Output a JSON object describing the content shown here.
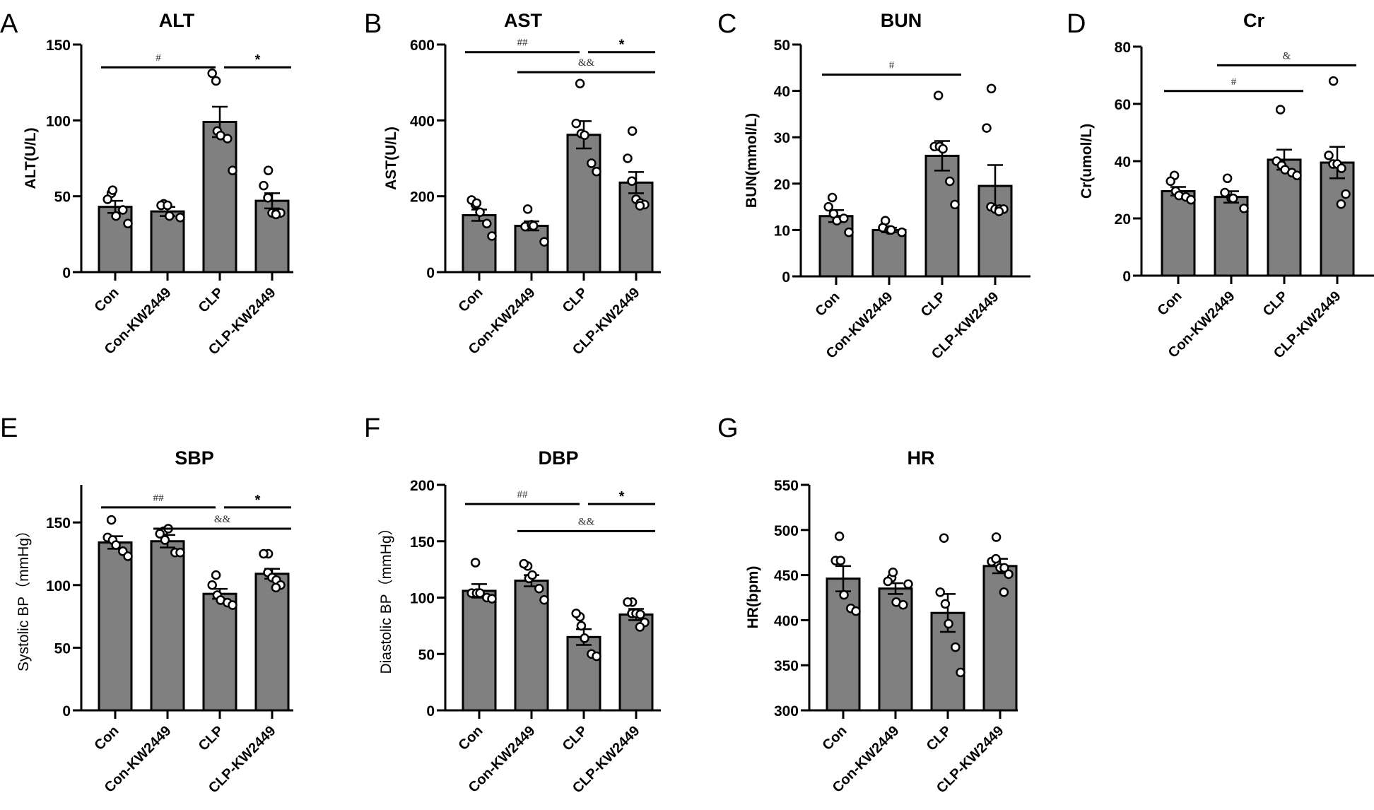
{
  "figure": {
    "bar_color": "#808080",
    "point_fill": "#ffffff",
    "line_color": "#000000"
  },
  "chart_data": [
    {
      "panel": "A",
      "type": "bar",
      "title": "ALT",
      "ylabel": "ALT(U/L)",
      "ylabel_weight": "bold",
      "categories": [
        "Con",
        "Con-KW2449",
        "CLP",
        "CLP-KW2449"
      ],
      "ylim": [
        0,
        150
      ],
      "yticks": [
        0,
        50,
        100,
        150
      ],
      "means": [
        43,
        40,
        99,
        47
      ],
      "sem": [
        4,
        3,
        10,
        5
      ],
      "points": [
        [
          52,
          48,
          54,
          37,
          41,
          32
        ],
        [
          45,
          44,
          44,
          37,
          36
        ],
        [
          126,
          131,
          93,
          90,
          88,
          67
        ],
        [
          67,
          57,
          49,
          39,
          39,
          39,
          38
        ]
      ],
      "annotations": [
        {
          "label": "#",
          "from": 0,
          "to": 2,
          "y": 135,
          "style": "small"
        },
        {
          "label": "*",
          "from": 2,
          "to": 3,
          "y": 135,
          "style": "star"
        }
      ]
    },
    {
      "panel": "B",
      "type": "bar",
      "title": "AST",
      "ylabel": "AST(U/L)",
      "ylabel_weight": "bold",
      "categories": [
        "Con",
        "Con-KW2449",
        "CLP",
        "CLP-KW2449"
      ],
      "ylim": [
        0,
        600
      ],
      "yticks": [
        0,
        200,
        400,
        600
      ],
      "means": [
        150,
        122,
        362,
        236
      ],
      "sem": [
        15,
        12,
        36,
        28
      ],
      "points": [
        [
          178,
          190,
          182,
          158,
          128,
          95
        ],
        [
          166,
          120,
          125,
          122,
          80
        ],
        [
          497,
          392,
          365,
          361,
          287,
          265
        ],
        [
          372,
          300,
          240,
          192,
          182,
          178,
          175
        ]
      ],
      "annotations": [
        {
          "label": "##",
          "from": 0,
          "to": 2,
          "y": 580,
          "style": "small"
        },
        {
          "label": "*",
          "from": 2,
          "to": 3,
          "y": 580,
          "style": "star"
        },
        {
          "label": "&&",
          "from": 1,
          "to": 3,
          "y": 527,
          "style": "amp"
        }
      ]
    },
    {
      "panel": "C",
      "type": "bar",
      "title": "BUN",
      "ylabel": "BUN(mmol/L)",
      "ylabel_weight": "bold",
      "categories": [
        "Con",
        "Con-KW2449",
        "CLP",
        "CLP-KW2449"
      ],
      "ylim": [
        0,
        50
      ],
      "yticks": [
        0,
        10,
        20,
        30,
        40,
        50
      ],
      "means": [
        13,
        10,
        26,
        19.5
      ],
      "sem": [
        1.3,
        0.5,
        3.2,
        4.5
      ],
      "points": [
        [
          17,
          15,
          13.5,
          12,
          12.5,
          9.5
        ],
        [
          12,
          10.5,
          10,
          10,
          9.5
        ],
        [
          39,
          28,
          28,
          27.5,
          20.5,
          15.5
        ],
        [
          40.5,
          32,
          15,
          14.5,
          14.5,
          14.5,
          14
        ]
      ],
      "annotations": [
        {
          "label": "#",
          "from": 0,
          "to": 2,
          "y": 43.5,
          "style": "small"
        }
      ]
    },
    {
      "panel": "D",
      "type": "bar",
      "title": "Cr",
      "ylabel": "Cr(umol/L)",
      "ylabel_weight": "bold",
      "categories": [
        "Con",
        "Con-KW2449",
        "CLP",
        "CLP-KW2449"
      ],
      "ylim": [
        0,
        80
      ],
      "yticks": [
        0,
        20,
        40,
        60,
        80
      ],
      "means": [
        29.5,
        27.5,
        40.5,
        39.5
      ],
      "sem": [
        1.5,
        2,
        3.5,
        5.5
      ],
      "points": [
        [
          35,
          33,
          29.5,
          28,
          27.5,
          26.5
        ],
        [
          34,
          29,
          27,
          27,
          23.5
        ],
        [
          58,
          40,
          38.5,
          37,
          36,
          35
        ],
        [
          68,
          42,
          39,
          39,
          37.5,
          28.5,
          25
        ]
      ],
      "annotations": [
        {
          "label": "#",
          "from": 0,
          "to": 2,
          "y": 64.5,
          "style": "small"
        },
        {
          "label": "&",
          "from": 1,
          "to": 3,
          "y": 73.5,
          "style": "amp"
        }
      ]
    },
    {
      "panel": "E",
      "type": "bar",
      "title": "SBP",
      "ylabel": "Systolic BP（mmHg）",
      "ylabel_weight": "normal",
      "categories": [
        "Con",
        "Con-KW2449",
        "CLP",
        "CLP-KW2449"
      ],
      "ylim": [
        0,
        180
      ],
      "yticks": [
        0,
        50,
        100,
        150
      ],
      "means": [
        134,
        135,
        93,
        109
      ],
      "sem": [
        5,
        5,
        4,
        4
      ],
      "points": [
        [
          152,
          138,
          136,
          132,
          127,
          123
        ],
        [
          143,
          141,
          136,
          145,
          126,
          126
        ],
        [
          108,
          100,
          92,
          88,
          86,
          84
        ],
        [
          125,
          125,
          110,
          106,
          104,
          100,
          98
        ]
      ],
      "annotations": [
        {
          "label": "##",
          "from": 0,
          "to": 2,
          "y": 162,
          "style": "small"
        },
        {
          "label": "*",
          "from": 2,
          "to": 3,
          "y": 162,
          "style": "star"
        },
        {
          "label": "&&",
          "from": 1,
          "to": 3,
          "y": 145,
          "style": "amp"
        }
      ]
    },
    {
      "panel": "F",
      "type": "bar",
      "title": "DBP",
      "ylabel": "Diastolic BP（mmHg）",
      "ylabel_weight": "normal",
      "categories": [
        "Con",
        "Con-KW2449",
        "CLP",
        "CLP-KW2449"
      ],
      "ylim": [
        0,
        200
      ],
      "yticks": [
        0,
        50,
        100,
        150,
        200
      ],
      "means": [
        106,
        115,
        65,
        85
      ],
      "sem": [
        6,
        5,
        7,
        5
      ],
      "points": [
        [
          131,
          104,
          104,
          104,
          100,
          99
        ],
        [
          128,
          130,
          117,
          120,
          108,
          98
        ],
        [
          83,
          86,
          75,
          64,
          50,
          48
        ],
        [
          96,
          96,
          86,
          86,
          85,
          78,
          74
        ]
      ],
      "annotations": [
        {
          "label": "##",
          "from": 0,
          "to": 2,
          "y": 183,
          "style": "small"
        },
        {
          "label": "*",
          "from": 2,
          "to": 3,
          "y": 183,
          "style": "star"
        },
        {
          "label": "&&",
          "from": 1,
          "to": 3,
          "y": 159,
          "style": "amp"
        }
      ]
    },
    {
      "panel": "G",
      "type": "bar",
      "title": "HR",
      "ylabel": "HR(bpm)",
      "ylabel_weight": "bold",
      "categories": [
        "Con",
        "Con-KW2449",
        "CLP",
        "CLP-KW2449"
      ],
      "ylim": [
        300,
        550
      ],
      "yticks": [
        300,
        350,
        400,
        450,
        500,
        550
      ],
      "means": [
        446,
        435,
        408,
        460
      ],
      "sem": [
        14,
        6,
        21,
        8
      ],
      "points": [
        [
          493,
          466,
          466,
          428,
          413,
          410
        ],
        [
          447,
          443,
          453,
          420,
          417,
          440
        ],
        [
          491,
          431,
          418,
          396,
          370,
          342
        ],
        [
          492,
          465,
          468,
          458,
          458,
          451,
          431
        ]
      ],
      "annotations": []
    }
  ]
}
